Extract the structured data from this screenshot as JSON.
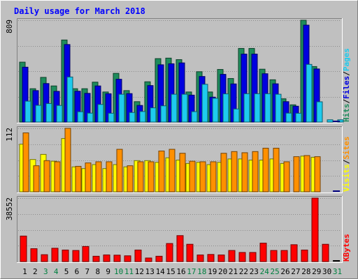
{
  "chart_data": {
    "type": "bar",
    "title": "Daily usage for March 2018",
    "days": [
      "1",
      "2",
      "3",
      "4",
      "5",
      "6",
      "7",
      "8",
      "9",
      "10",
      "11",
      "12",
      "13",
      "14",
      "15",
      "16",
      "17",
      "18",
      "19",
      "20",
      "21",
      "22",
      "23",
      "24",
      "25",
      "26",
      "27",
      "28",
      "29",
      "30",
      "31"
    ],
    "weekend_days": [
      "3",
      "4",
      "10",
      "11",
      "17",
      "18",
      "24",
      "25",
      "31"
    ],
    "panels": [
      {
        "id": "hits_files_pages",
        "max_label": "809",
        "ymax": 809,
        "legend": [
          "Pages",
          "/",
          "Files",
          "/",
          "Hits"
        ],
        "series": [
          {
            "name": "Hits",
            "color": "#1e8c5c",
            "values": [
              476,
              265,
              355,
              287,
              652,
              265,
              265,
              317,
              239,
              387,
              250,
              162,
              320,
              504,
              508,
              496,
              239,
              400,
              239,
              418,
              346,
              585,
              585,
              420,
              336,
              185,
              137,
              809,
              441,
              0,
              0
            ]
          },
          {
            "name": "Files",
            "color": "#0000e0",
            "values": [
              436,
              250,
              306,
              244,
              616,
              245,
              228,
              287,
              225,
              340,
              226,
              132,
              290,
              455,
              463,
              470,
              214,
              362,
              198,
              379,
              303,
              540,
              540,
              384,
              304,
              162,
              126,
              770,
              422,
              0,
              0
            ]
          },
          {
            "name": "Pages",
            "color": "#1ecbee",
            "values": [
              166,
              133,
              147,
              132,
              358,
              82,
              71,
              140,
              70,
              221,
              76,
              84,
              113,
              129,
              221,
              221,
              83,
              300,
              189,
              224,
              104,
              225,
              225,
              225,
              221,
              71,
              70,
              458,
              161,
              18,
              18
            ]
          }
        ]
      },
      {
        "id": "visits_sites",
        "max_label": "112",
        "ymax": 112,
        "legend": [
          "Sites",
          "/",
          "Visits"
        ],
        "series": [
          {
            "name": "Visits",
            "color": "#ffff00",
            "values": [
              84,
              57,
              66,
              54,
              94,
              44,
              41,
              48,
              41,
              48,
              44,
              55,
              55,
              52,
              60,
              56,
              50,
              52,
              48,
              52,
              58,
              58,
              56,
              56,
              58,
              50,
              0,
              63,
              61,
              0,
              0
            ]
          },
          {
            "name": "Sites",
            "color": "#ff9000",
            "values": [
              104,
              46,
              55,
              53,
              112,
              45,
              51,
              53,
              53,
              75,
              46,
              53,
              53,
              72,
              75,
              68,
              54,
              53,
              53,
              68,
              71,
              69,
              71,
              77,
              77,
              53,
              62,
              64,
              62,
              0,
              0
            ]
          }
        ]
      },
      {
        "id": "kbytes",
        "max_label": "38552",
        "ymax": 38552,
        "legend": [
          "KBytes"
        ],
        "series": [
          {
            "name": "KBytes",
            "color": "#ff0000",
            "values": [
              15500,
              7820,
              4180,
              8090,
              7010,
              6740,
              9170,
              3240,
              4040,
              3900,
              3500,
              7010,
              2160,
              3240,
              10970,
              15770,
              10510,
              4010,
              4320,
              4010,
              6740,
              5530,
              5530,
              11200,
              6740,
              6740,
              10240,
              7010,
              38552,
              10500,
              0
            ]
          }
        ]
      }
    ]
  },
  "colors": {
    "background": "#c0c0c0",
    "title": "#0000ff",
    "weekday_label": "#000000",
    "weekend_label": "#008040"
  }
}
